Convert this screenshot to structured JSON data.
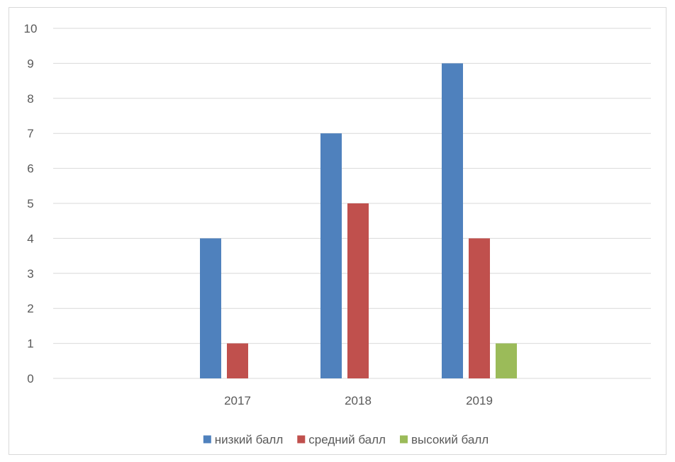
{
  "chart_data": {
    "type": "bar",
    "title": "",
    "xlabel": "",
    "ylabel": "",
    "categories": [
      "2017",
      "2018",
      "2019"
    ],
    "ylim": [
      0,
      10
    ],
    "yticks": [
      0,
      1,
      2,
      3,
      4,
      5,
      6,
      7,
      8,
      9,
      10
    ],
    "grid": true,
    "legend_position": "bottom",
    "series": [
      {
        "name": "низкий балл",
        "color": "#4f81bd",
        "values": [
          4,
          7,
          9
        ]
      },
      {
        "name": "средний балл",
        "color": "#c0504d",
        "values": [
          1,
          5,
          4
        ]
      },
      {
        "name": "высокий балл",
        "color": "#9bbb59",
        "values": [
          0,
          0,
          1
        ]
      }
    ]
  }
}
